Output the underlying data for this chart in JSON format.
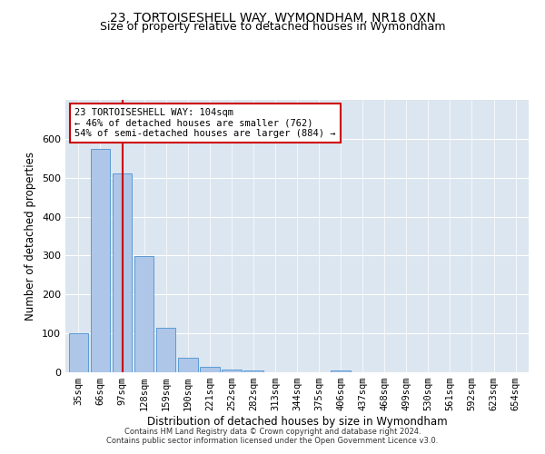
{
  "title": "23, TORTOISESHELL WAY, WYMONDHAM, NR18 0XN",
  "subtitle": "Size of property relative to detached houses in Wymondham",
  "xlabel": "Distribution of detached houses by size in Wymondham",
  "ylabel": "Number of detached properties",
  "bar_labels": [
    "35sqm",
    "66sqm",
    "97sqm",
    "128sqm",
    "159sqm",
    "190sqm",
    "221sqm",
    "252sqm",
    "282sqm",
    "313sqm",
    "344sqm",
    "375sqm",
    "406sqm",
    "437sqm",
    "468sqm",
    "499sqm",
    "530sqm",
    "561sqm",
    "592sqm",
    "623sqm",
    "654sqm"
  ],
  "bar_values": [
    100,
    575,
    510,
    298,
    115,
    37,
    15,
    8,
    5,
    0,
    0,
    0,
    5,
    0,
    0,
    0,
    0,
    0,
    0,
    0,
    0
  ],
  "bar_color": "#aec6e8",
  "bar_edgecolor": "#5b9bd5",
  "red_line_index": 2,
  "red_line_color": "#cc0000",
  "annotation_text": "23 TORTOISESHELL WAY: 104sqm\n← 46% of detached houses are smaller (762)\n54% of semi-detached houses are larger (884) →",
  "annotation_box_color": "#ffffff",
  "annotation_box_edgecolor": "#cc0000",
  "ylim": [
    0,
    700
  ],
  "yticks": [
    0,
    100,
    200,
    300,
    400,
    500,
    600,
    700
  ],
  "bg_color": "#dce6f0",
  "footer_text": "Contains HM Land Registry data © Crown copyright and database right 2024.\nContains public sector information licensed under the Open Government Licence v3.0.",
  "title_fontsize": 10,
  "subtitle_fontsize": 9,
  "xlabel_fontsize": 8.5,
  "ylabel_fontsize": 8.5
}
